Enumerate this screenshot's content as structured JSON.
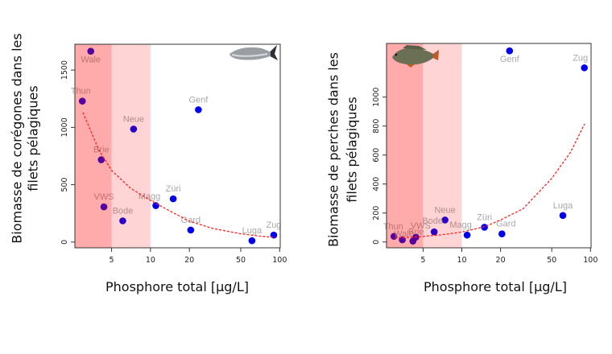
{
  "chart_data": [
    {
      "type": "scatter",
      "xlabel": "Phosphore total [µg/L]",
      "ylabel_lines": [
        "Biomasse de corégones dans les",
        "filets pélagiques"
      ],
      "x_scale": "log",
      "xlim": [
        2.6,
        101
      ],
      "ylim": [
        -50,
        1725
      ],
      "x_ticks": [
        5,
        10,
        20,
        50,
        100
      ],
      "y_ticks": [
        0,
        500,
        1000,
        1500
      ],
      "grid": false,
      "shaded_ranges": [
        {
          "from": 2.6,
          "to": 5,
          "color": "#ffaaaa"
        },
        {
          "from": 5,
          "to": 10,
          "color": "#ffd4d4"
        }
      ],
      "point_color": "#0000ee",
      "label_color": "#a8a8a8",
      "trend_color": "#ff2020",
      "fish_icon": "whitefish",
      "points": [
        {
          "label": "Wale",
          "x": 3.45,
          "y": 1664
        },
        {
          "label": "Thun",
          "x": 2.97,
          "y": 1229
        },
        {
          "label": "Brie",
          "x": 4.16,
          "y": 718
        },
        {
          "label": "VWS",
          "x": 4.36,
          "y": 307
        },
        {
          "label": "Bode",
          "x": 6.1,
          "y": 185
        },
        {
          "label": "Neue",
          "x": 7.4,
          "y": 985
        },
        {
          "label": "Magg",
          "x": 11,
          "y": 318
        },
        {
          "label": "Züri",
          "x": 15,
          "y": 377
        },
        {
          "label": "Genf",
          "x": 23.5,
          "y": 1154
        },
        {
          "label": "Gard",
          "x": 20.5,
          "y": 105
        },
        {
          "label": "Luga",
          "x": 61,
          "y": 12
        },
        {
          "label": "Zug",
          "x": 90,
          "y": 61
        }
      ],
      "trend": [
        [
          3,
          1130
        ],
        [
          4,
          800
        ],
        [
          5,
          625
        ],
        [
          7,
          470
        ],
        [
          10,
          363
        ],
        [
          15,
          255
        ],
        [
          20,
          183
        ],
        [
          30,
          120
        ],
        [
          50,
          72
        ],
        [
          70,
          52
        ],
        [
          90,
          42
        ]
      ]
    },
    {
      "type": "scatter",
      "xlabel": "Phosphore total [µg/L]",
      "ylabel_lines": [
        "Biomasse de perches dans les",
        "filets pélagiques"
      ],
      "x_scale": "log",
      "xlim": [
        2.6,
        101
      ],
      "ylim": [
        -40,
        1370
      ],
      "x_ticks": [
        5,
        10,
        20,
        50,
        100
      ],
      "y_ticks": [
        0,
        200,
        400,
        600,
        800,
        1000
      ],
      "grid": false,
      "shaded_ranges": [
        {
          "from": 2.6,
          "to": 5,
          "color": "#ffaaaa"
        },
        {
          "from": 5,
          "to": 10,
          "color": "#ffd4d4"
        }
      ],
      "point_color": "#0000ee",
      "label_color": "#a8a8a8",
      "trend_color": "#ff2020",
      "fish_icon": "perch",
      "points": [
        {
          "label": "Genf",
          "x": 23.5,
          "y": 1319
        },
        {
          "label": "Zug",
          "x": 89.6,
          "y": 1202
        },
        {
          "label": "Luga",
          "x": 61,
          "y": 183
        },
        {
          "label": "Neue",
          "x": 7.4,
          "y": 152
        },
        {
          "label": "Züri",
          "x": 15,
          "y": 102
        },
        {
          "label": "Magg",
          "x": 11,
          "y": 48
        },
        {
          "label": "Gard",
          "x": 20.5,
          "y": 56
        },
        {
          "label": "Bode",
          "x": 6.1,
          "y": 70
        },
        {
          "label": "Thun",
          "x": 2.97,
          "y": 39
        },
        {
          "label": "Wale",
          "x": 3.45,
          "y": 15
        },
        {
          "label": "Brie",
          "x": 4.17,
          "y": 6
        },
        {
          "label": "VWS",
          "x": 4.39,
          "y": 33
        }
      ],
      "trend": [
        [
          3,
          28
        ],
        [
          4,
          32
        ],
        [
          5,
          38
        ],
        [
          7,
          50
        ],
        [
          10,
          69
        ],
        [
          15,
          105
        ],
        [
          20,
          152
        ],
        [
          30,
          230
        ],
        [
          50,
          439
        ],
        [
          70,
          620
        ],
        [
          90,
          815
        ]
      ]
    }
  ]
}
